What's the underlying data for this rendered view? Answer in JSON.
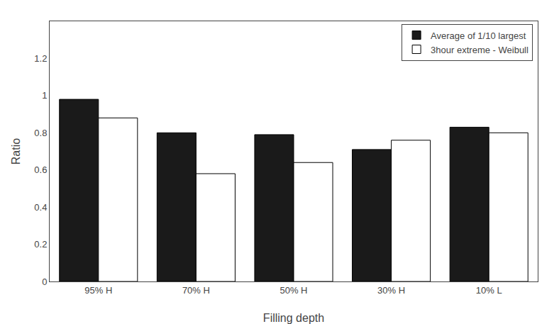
{
  "chart_data": {
    "type": "bar",
    "xlabel": "Filling depth",
    "ylabel": "Ratio",
    "categories": [
      "95% H",
      "70% H",
      "50% H",
      "30% H",
      "10% L"
    ],
    "series": [
      {
        "name": "Average of 1/10 largest",
        "color": "#1a1a1a",
        "values": [
          0.98,
          0.8,
          0.79,
          0.71,
          0.83
        ]
      },
      {
        "name": "3hour extreme - Weibull",
        "color": "#ffffff",
        "values": [
          0.88,
          0.58,
          0.64,
          0.76,
          0.8
        ]
      }
    ],
    "ylim": [
      0,
      1.4
    ],
    "yticks": [
      0,
      0.2,
      0.4,
      0.6,
      0.8,
      1,
      1.2
    ],
    "grid": false,
    "legend": "upper right"
  }
}
